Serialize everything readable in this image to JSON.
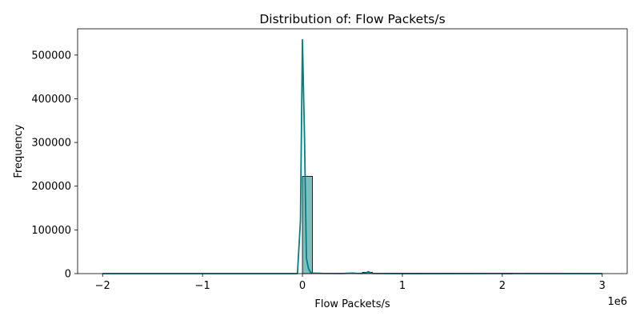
{
  "chart_data": {
    "type": "bar",
    "title": "Distribution of: Flow Packets/s",
    "xlabel": "Flow Packets/s",
    "ylabel": "Frequency",
    "x_offset_label": "1e6",
    "xlim": [
      -2250000,
      3250000
    ],
    "ylim": [
      0,
      560000
    ],
    "x_scale_multiplier": 1000000,
    "xticks": [
      -2000000,
      -1000000,
      0,
      1000000,
      2000000,
      3000000
    ],
    "xtick_labels": [
      "−2",
      "−1",
      "0",
      "1",
      "2",
      "3"
    ],
    "yticks": [
      0,
      100000,
      200000,
      300000,
      400000,
      500000
    ],
    "ytick_labels": [
      "0",
      "100000",
      "200000",
      "300000",
      "400000",
      "500000"
    ],
    "grid": false,
    "histogram": {
      "bin_width": 100000,
      "color": "#008080",
      "bins": [
        {
          "x0": -2000000,
          "count": 0
        },
        {
          "x0": 0,
          "count": 222500
        },
        {
          "x0": 500000,
          "count": 900
        },
        {
          "x0": 600000,
          "count": 3000
        },
        {
          "x0": 2000000,
          "count": 300
        }
      ]
    },
    "kde": {
      "color": "#008080",
      "x": [
        -2000000,
        -100000,
        -50000,
        -20000,
        0,
        20000,
        40000,
        60000,
        80000,
        100000,
        200000,
        400000,
        500000,
        550000,
        600000,
        630000,
        660000,
        690000,
        720000,
        800000,
        1000000,
        2000000,
        3000000
      ],
      "y": [
        0,
        0,
        0,
        120000,
        535000,
        320000,
        35000,
        12000,
        3000,
        1000,
        400,
        300,
        1200,
        500,
        500,
        1200,
        4500,
        800,
        300,
        200,
        100,
        300,
        0
      ]
    }
  }
}
